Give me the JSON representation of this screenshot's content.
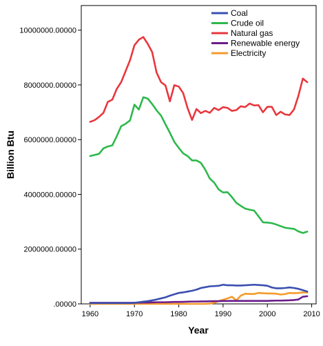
{
  "chart_data": {
    "type": "line",
    "title": "",
    "xlabel": "Year",
    "ylabel": "Billion Btu",
    "xlim": [
      1958,
      2011
    ],
    "ylim": [
      0,
      10900000
    ],
    "x_ticks": [
      1960,
      1970,
      1980,
      1990,
      2000,
      2010
    ],
    "x_tick_labels": [
      "1960",
      "1970",
      "1980",
      "1990",
      "2000",
      "2010"
    ],
    "y_ticks": [
      0,
      2000000,
      4000000,
      6000000,
      8000000,
      10000000
    ],
    "y_tick_labels": [
      ".00000",
      "2000000.00000",
      "4000000.00000",
      "6000000.00000",
      "8000000.00000",
      "10000000.00000"
    ],
    "grid": false,
    "legend_position": "top-right",
    "x": [
      1960,
      1961,
      1962,
      1963,
      1964,
      1965,
      1966,
      1967,
      1968,
      1969,
      1970,
      1971,
      1972,
      1973,
      1974,
      1975,
      1976,
      1977,
      1978,
      1979,
      1980,
      1981,
      1982,
      1983,
      1984,
      1985,
      1986,
      1987,
      1988,
      1989,
      1990,
      1991,
      1992,
      1993,
      1994,
      1995,
      1996,
      1997,
      1998,
      1999,
      2000,
      2001,
      2002,
      2003,
      2004,
      2005,
      2006,
      2007,
      2008,
      2009
    ],
    "series": [
      {
        "name": "Coal",
        "color": "#3a4fb0",
        "values": [
          30000,
          30000,
          30000,
          30000,
          30000,
          30000,
          30000,
          30000,
          30000,
          30000,
          40000,
          60000,
          80000,
          100000,
          130000,
          160000,
          200000,
          240000,
          300000,
          350000,
          400000,
          420000,
          450000,
          480000,
          520000,
          580000,
          610000,
          640000,
          650000,
          660000,
          700000,
          680000,
          680000,
          670000,
          670000,
          680000,
          690000,
          700000,
          690000,
          680000,
          660000,
          600000,
          570000,
          570000,
          580000,
          600000,
          580000,
          550000,
          500000,
          450000
        ]
      },
      {
        "name": "Crude oil",
        "color": "#2db84b",
        "values": [
          5400000,
          5440000,
          5480000,
          5680000,
          5750000,
          5790000,
          6120000,
          6490000,
          6580000,
          6700000,
          7280000,
          7100000,
          7550000,
          7500000,
          7300000,
          7070000,
          6880000,
          6560000,
          6250000,
          5920000,
          5700000,
          5500000,
          5400000,
          5240000,
          5240000,
          5150000,
          4900000,
          4580000,
          4430000,
          4180000,
          4070000,
          4080000,
          3900000,
          3690000,
          3580000,
          3480000,
          3440000,
          3410000,
          3200000,
          2980000,
          2970000,
          2950000,
          2900000,
          2840000,
          2780000,
          2760000,
          2740000,
          2650000,
          2590000,
          2640000
        ]
      },
      {
        "name": "Natural gas",
        "color": "#e8373d",
        "values": [
          6650000,
          6710000,
          6830000,
          6980000,
          7380000,
          7460000,
          7850000,
          8100000,
          8500000,
          8900000,
          9450000,
          9650000,
          9750000,
          9500000,
          9200000,
          8450000,
          8100000,
          7980000,
          7400000,
          7990000,
          7940000,
          7700000,
          7150000,
          6720000,
          7120000,
          6970000,
          7050000,
          6980000,
          7160000,
          7080000,
          7190000,
          7160000,
          7050000,
          7080000,
          7220000,
          7190000,
          7320000,
          7250000,
          7260000,
          7000000,
          7200000,
          7200000,
          6900000,
          7020000,
          6920000,
          6900000,
          7100000,
          7600000,
          8230000,
          8100000
        ]
      },
      {
        "name": "Renewable energy",
        "color": "#6a1b8a",
        "values": [
          40000,
          40000,
          40000,
          40000,
          40000,
          40000,
          40000,
          40000,
          40000,
          40000,
          40000,
          45000,
          50000,
          50000,
          55000,
          60000,
          60000,
          60000,
          65000,
          70000,
          70000,
          75000,
          80000,
          85000,
          85000,
          90000,
          90000,
          95000,
          100000,
          100000,
          105000,
          105000,
          110000,
          110000,
          110000,
          110000,
          110000,
          110000,
          110000,
          110000,
          110000,
          115000,
          120000,
          120000,
          125000,
          130000,
          140000,
          160000,
          260000,
          280000
        ]
      },
      {
        "name": "Electricity",
        "color": "#f49b2a",
        "values": [
          0,
          0,
          0,
          0,
          0,
          0,
          0,
          0,
          0,
          0,
          0,
          0,
          0,
          0,
          0,
          0,
          0,
          0,
          0,
          0,
          0,
          0,
          0,
          0,
          0,
          0,
          0,
          10000,
          40000,
          100000,
          150000,
          200000,
          260000,
          130000,
          300000,
          370000,
          360000,
          360000,
          400000,
          390000,
          380000,
          380000,
          370000,
          340000,
          360000,
          400000,
          390000,
          400000,
          420000,
          410000
        ]
      }
    ]
  }
}
